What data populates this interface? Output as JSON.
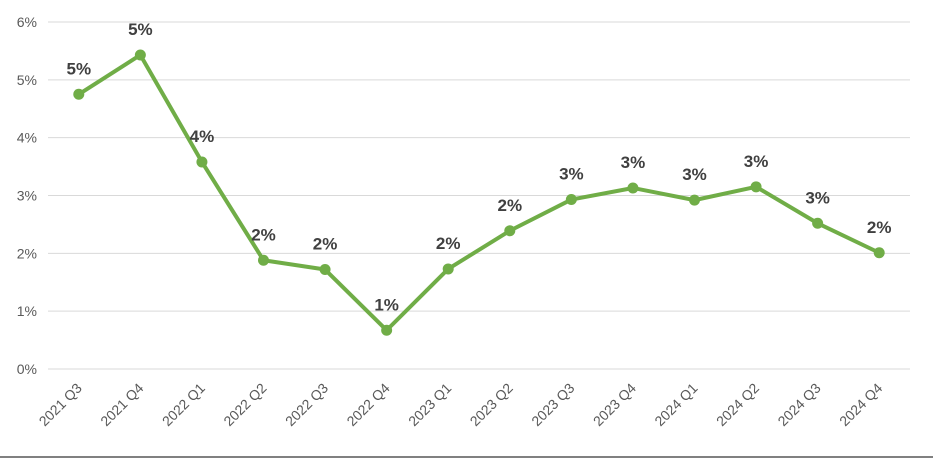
{
  "chart_data": {
    "type": "line",
    "title": "",
    "xlabel": "",
    "ylabel": "",
    "categories": [
      "2021 Q3",
      "2021 Q4",
      "2022 Q1",
      "2022 Q2",
      "2022 Q3",
      "2022 Q4",
      "2023 Q1",
      "2023 Q2",
      "2023 Q3",
      "2023 Q4",
      "2024 Q1",
      "2024 Q2",
      "2024 Q3",
      "2024 Q4"
    ],
    "series": [
      {
        "values": [
          4.75,
          5.43,
          3.58,
          1.88,
          1.72,
          0.67,
          1.73,
          2.39,
          2.93,
          3.13,
          2.92,
          3.15,
          2.52,
          2.01
        ],
        "data_labels": [
          "5%",
          "5%",
          "4%",
          "2%",
          "2%",
          "1%",
          "2%",
          "2%",
          "3%",
          "3%",
          "3%",
          "3%",
          "3%",
          "2%"
        ],
        "color": "#70ad47"
      }
    ],
    "ylim": [
      0,
      6
    ],
    "yticks": [
      0,
      1,
      2,
      3,
      4,
      5,
      6
    ],
    "ytick_labels": [
      "0%",
      "1%",
      "2%",
      "3%",
      "4%",
      "5%",
      "6%"
    ],
    "grid": true,
    "legend": "none"
  }
}
